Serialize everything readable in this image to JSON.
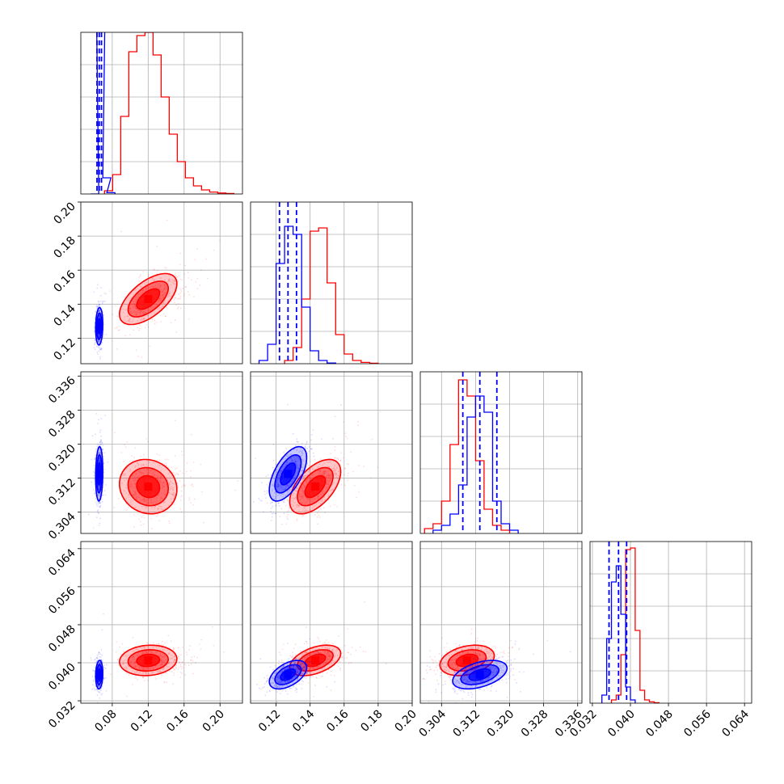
{
  "chart_data": {
    "type": "corner",
    "grid": true,
    "colors": {
      "series_a": "#ff0000",
      "series_b": "#0000ff",
      "grid": "#b0b0b0",
      "axes": "#000000"
    },
    "series": [
      {
        "color": "#ff0000",
        "means": [
          0.12,
          0.143,
          0.31,
          0.0405
        ],
        "sds": [
          0.016,
          0.0075,
          0.0032,
          0.0016
        ]
      },
      {
        "color": "#0000ff",
        "means": [
          0.0655,
          0.127,
          0.313,
          0.0375
        ],
        "sds": [
          0.002,
          0.0055,
          0.0032,
          0.0015
        ],
        "quantile_lines": [
          [
            0.063,
            0.0655,
            0.068
          ],
          [
            0.122,
            0.127,
            0.132
          ],
          [
            0.309,
            0.313,
            0.317
          ],
          [
            0.0355,
            0.0375,
            0.0392
          ]
        ]
      }
    ],
    "parameters": [
      {
        "range": [
          0.045,
          0.225
        ],
        "ticks": [
          0.08,
          0.12,
          0.16,
          0.2
        ],
        "tick_labels": [
          "0.08",
          "0.12",
          "0.16",
          "0.20"
        ]
      },
      {
        "range": [
          0.105,
          0.2
        ],
        "ticks": [
          0.12,
          0.14,
          0.16,
          0.18,
          0.2
        ],
        "tick_labels": [
          "0.12",
          "0.14",
          "0.16",
          "0.18",
          "0.20"
        ]
      },
      {
        "range": [
          0.299,
          0.337
        ],
        "ticks": [
          0.304,
          0.312,
          0.32,
          0.328,
          0.336
        ],
        "tick_labels": [
          "0.304",
          "0.312",
          "0.320",
          "0.328",
          "0.336"
        ]
      },
      {
        "range": [
          0.0315,
          0.0655
        ],
        "ticks": [
          0.032,
          0.04,
          0.048,
          0.056,
          0.064
        ],
        "tick_labels": [
          "0.032",
          "0.040",
          "0.048",
          "0.056",
          "0.064"
        ]
      }
    ],
    "histograms": [
      {
        "bin_width": 0.009,
        "red": [
          [
            0.076,
            0.02
          ],
          [
            0.085,
            0.12
          ],
          [
            0.094,
            0.48
          ],
          [
            0.103,
            0.88
          ],
          [
            0.112,
            0.98
          ],
          [
            0.121,
            1.0
          ],
          [
            0.13,
            0.86
          ],
          [
            0.139,
            0.6
          ],
          [
            0.148,
            0.37
          ],
          [
            0.157,
            0.2
          ],
          [
            0.166,
            0.1
          ],
          [
            0.175,
            0.05
          ],
          [
            0.184,
            0.025
          ],
          [
            0.193,
            0.012
          ],
          [
            0.202,
            0.006
          ],
          [
            0.211,
            0.003
          ]
        ],
        "blue": [
          [
            0.0605,
            0.0
          ],
          [
            0.065,
            2.0
          ],
          [
            0.0695,
            2.0
          ],
          [
            0.074,
            0.1
          ],
          [
            0.0785,
            0.008
          ]
        ]
      },
      {
        "bin_width": 0.005,
        "red": [
          [
            0.1275,
            0.02
          ],
          [
            0.1325,
            0.1
          ],
          [
            0.1375,
            0.4
          ],
          [
            0.1425,
            0.82
          ],
          [
            0.1475,
            0.84
          ],
          [
            0.1525,
            0.5
          ],
          [
            0.1575,
            0.18
          ],
          [
            0.1625,
            0.06
          ],
          [
            0.1675,
            0.02
          ],
          [
            0.1725,
            0.008
          ],
          [
            0.1775,
            0.003
          ]
        ],
        "blue": [
          [
            0.1125,
            0.02
          ],
          [
            0.1175,
            0.12
          ],
          [
            0.1225,
            0.62
          ],
          [
            0.1275,
            0.85
          ],
          [
            0.1325,
            0.8
          ],
          [
            0.1375,
            0.35
          ],
          [
            0.1425,
            0.08
          ],
          [
            0.1475,
            0.02
          ],
          [
            0.1525,
            0.004
          ]
        ]
      },
      {
        "bin_width": 0.002,
        "red": [
          [
            0.301,
            0.03
          ],
          [
            0.303,
            0.06
          ],
          [
            0.305,
            0.2
          ],
          [
            0.307,
            0.55
          ],
          [
            0.309,
            0.95
          ],
          [
            0.311,
            0.85
          ],
          [
            0.313,
            0.45
          ],
          [
            0.315,
            0.15
          ],
          [
            0.317,
            0.05
          ],
          [
            0.319,
            0.02
          ]
        ],
        "blue": [
          [
            0.303,
            0.02
          ],
          [
            0.305,
            0.05
          ],
          [
            0.307,
            0.12
          ],
          [
            0.309,
            0.3
          ],
          [
            0.311,
            0.72
          ],
          [
            0.313,
            0.85
          ],
          [
            0.315,
            0.75
          ],
          [
            0.317,
            0.2
          ],
          [
            0.319,
            0.06
          ],
          [
            0.321,
            0.02
          ]
        ]
      },
      {
        "bin_width": 0.001,
        "red": [
          [
            0.0365,
            0.02
          ],
          [
            0.0375,
            0.05
          ],
          [
            0.0385,
            0.3
          ],
          [
            0.0395,
            0.95
          ],
          [
            0.0405,
            0.96
          ],
          [
            0.0415,
            0.45
          ],
          [
            0.0425,
            0.08
          ],
          [
            0.0435,
            0.02
          ],
          [
            0.0445,
            0.008
          ],
          [
            0.0455,
            0.003
          ]
        ],
        "blue": [
          [
            0.0345,
            0.05
          ],
          [
            0.0355,
            0.4
          ],
          [
            0.0365,
            0.75
          ],
          [
            0.0375,
            0.85
          ],
          [
            0.0385,
            0.55
          ],
          [
            0.0395,
            0.1
          ],
          [
            0.0405,
            0.02
          ]
        ]
      }
    ]
  }
}
